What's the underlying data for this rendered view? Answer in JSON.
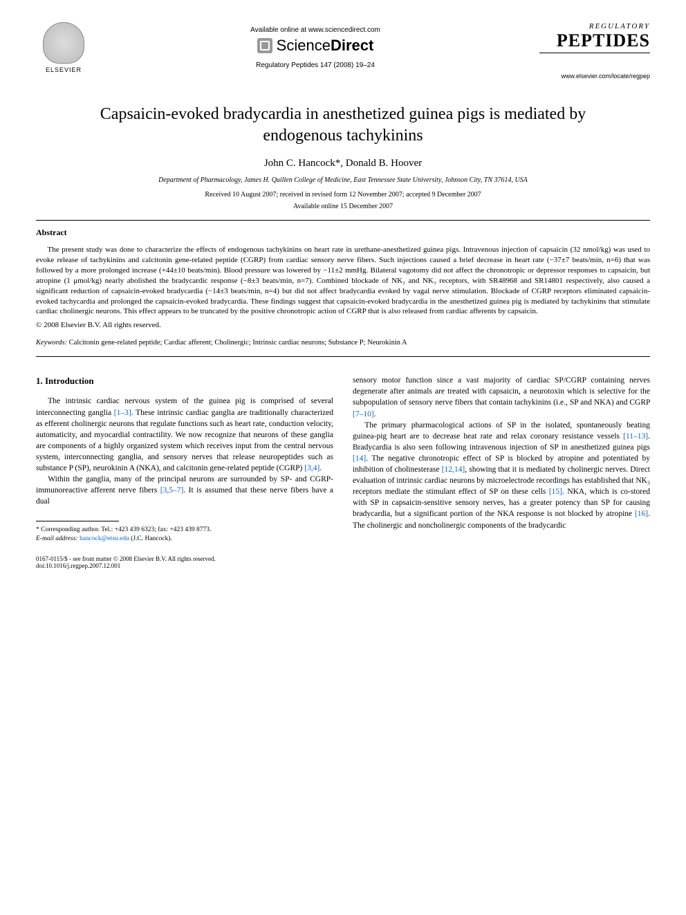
{
  "header": {
    "elsevier_label": "ELSEVIER",
    "available_online": "Available online at www.sciencedirect.com",
    "sciencedirect_prefix": "Science",
    "sciencedirect_suffix": "Direct",
    "journal_ref": "Regulatory Peptides 147 (2008) 19–24",
    "regulatory": "REGULATORY",
    "peptides": "PEPTIDES",
    "journal_url": "www.elsevier.com/locate/regpep"
  },
  "title": "Capsaicin-evoked bradycardia in anesthetized guinea pigs is mediated by endogenous tachykinins",
  "authors": "John C. Hancock*, Donald B. Hoover",
  "affiliation": "Department of Pharmacology, James H. Quillen College of Medicine, East Tennessee State University, Johnson City, TN 37614, USA",
  "dates_line1": "Received 10 August 2007; received in revised form 12 November 2007; accepted 9 December 2007",
  "dates_line2": "Available online 15 December 2007",
  "abstract_heading": "Abstract",
  "abstract_body": "The present study was done to characterize the effects of endogenous tachykinins on heart rate in urethane-anesthetized guinea pigs. Intravenous injection of capsaicin (32 nmol/kg) was used to evoke release of tachykinins and calcitonin gene-related peptide (CGRP) from cardiac sensory nerve fibers. Such injections caused a brief decrease in heart rate (−37±7 beats/min, n=6) that was followed by a more prolonged increase (+44±10 beats/min). Blood pressure was lowered by −11±2 mmHg. Bilateral vagotomy did not affect the chronotropic or depressor responses to capsaicin, but atropine (1 μmol/kg) nearly abolished the bradycardic response (−8±3 beats/min, n=7). Combined blockade of NK₂ and NK₃ receptors, with SR48968 and SR14801 respectively, also caused a significant reduction of capsaicin-evoked bradycardia (−14±3 beats/min, n=4) but did not affect bradycardia evoked by vagal nerve stimulation. Blockade of CGRP receptors eliminated capsaicin-evoked tachycardia and prolonged the capsaicin-evoked bradycardia. These findings suggest that capsaicin-evoked bradycardia in the anesthetized guinea pig is mediated by tachykinins that stimulate cardiac cholinergic neurons. This effect appears to be truncated by the positive chronotropic action of CGRP that is also released from cardiac afferents by capsaicin.",
  "copyright": "© 2008 Elsevier B.V. All rights reserved.",
  "keywords_label": "Keywords:",
  "keywords_body": " Calcitonin gene-related peptide; Cardiac afferent; Cholinergic; Intrinsic cardiac neurons; Substance P; Neurokinin A",
  "intro_heading": "1. Introduction",
  "col1": {
    "p1a": "The intrinsic cardiac nervous system of the guinea pig is comprised of several interconnecting ganglia ",
    "p1_ref1": "[1–3]",
    "p1b": ". These intrinsic cardiac ganglia are traditionally characterized as efferent cholinergic neurons that regulate functions such as heart rate, conduction velocity, automaticity, and myocardial contractility. We now recognize that neurons of these ganglia are components of a highly organized system which receives input from the central nervous system, interconnecting ganglia, and sensory nerves that release neuropeptides such as substance P (SP), neurokinin A (NKA), and calcitonin gene-related peptide (CGRP) ",
    "p1_ref2": "[3,4]",
    "p1c": ".",
    "p2a": "Within the ganglia, many of the principal neurons are surrounded by SP- and CGRP-immunoreactive afferent nerve fibers ",
    "p2_ref1": "[3,5–7]",
    "p2b": ". It is assumed that these nerve fibers have a dual"
  },
  "col2": {
    "p1a": "sensory motor function since a vast majority of cardiac SP/CGRP containing nerves degenerate after animals are treated with capsaicin, a neurotoxin which is selective for the subpopulation of sensory nerve fibers that contain tachykinins (i.e., SP and NKA) and CGRP ",
    "p1_ref1": "[7–10]",
    "p1b": ".",
    "p2a": "The primary pharmacological actions of SP in the isolated, spontaneously beating guinea-pig heart are to decrease heat rate and relax coronary resistance vessels ",
    "p2_ref1": "[11–13]",
    "p2b": ". Bradycardia is also seen following intravenous injection of SP in anesthetized guinea pigs ",
    "p2_ref2": "[14]",
    "p2c": ". The negative chronotropic effect of SP is blocked by atropine and potentiated by inhibition of cholinesterase ",
    "p2_ref3": "[12,14]",
    "p2d": ", showing that it is mediated by cholinergic nerves. Direct evaluation of intrinsic cardiac neurons by microelectrode recordings has established that NK₃ receptors mediate the stimulant effect of SP on these cells ",
    "p2_ref4": "[15]",
    "p2e": ". NKA, which is co-stored with SP in capsaicin-sensitive sensory nerves, has a greater potency than SP for causing bradycardia, but a significant portion of the NKA response is not blocked by atropine ",
    "p2_ref5": "[16]",
    "p2f": ". The cholinergic and noncholinergic components of the bradycardic"
  },
  "footnote": {
    "corresponding": "* Corresponding author. Tel.: +423 439 6323; fax: +423 439 8773.",
    "email_label": "E-mail address:",
    "email": " hancock@etsu.edu ",
    "email_suffix": "(J.C. Hancock)."
  },
  "footer": {
    "left_line1": "0167-0115/$ - see front matter © 2008 Elsevier B.V. All rights reserved.",
    "left_line2": "doi:10.1016/j.regpep.2007.12.001"
  },
  "colors": {
    "link": "#0066cc",
    "text": "#000000",
    "bg": "#ffffff"
  }
}
